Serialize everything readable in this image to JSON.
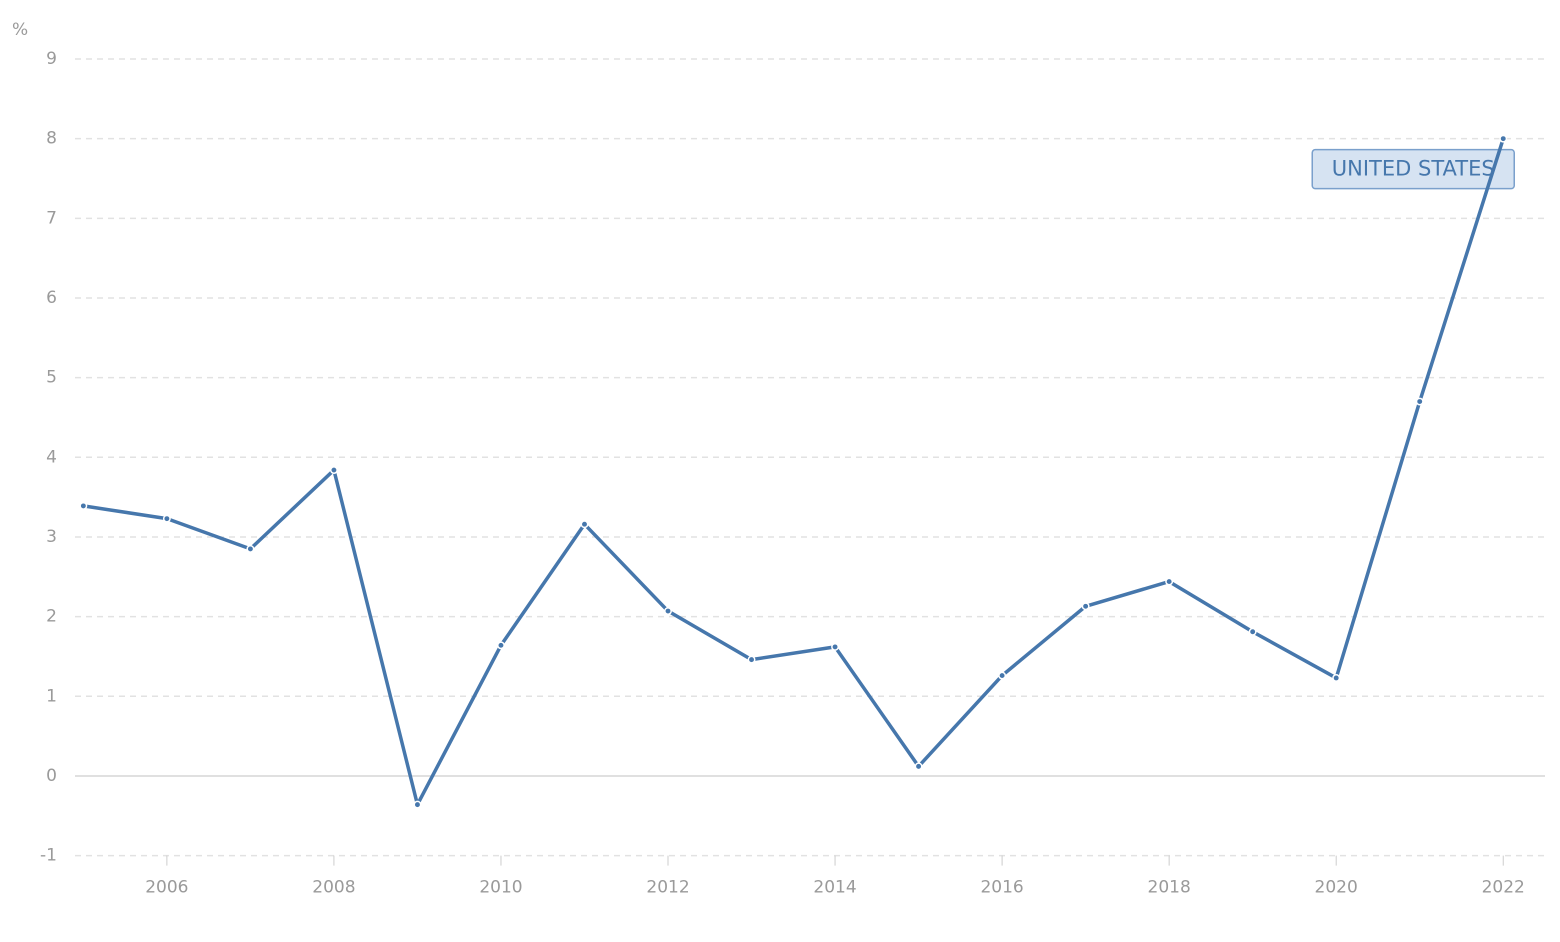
{
  "chart_data": {
    "type": "line",
    "y_unit": "%",
    "x": [
      2005,
      2006,
      2007,
      2008,
      2009,
      2010,
      2011,
      2012,
      2013,
      2014,
      2015,
      2016,
      2017,
      2018,
      2019,
      2020,
      2021,
      2022
    ],
    "series": [
      {
        "name": "UNITED STATES",
        "color": "#4677ac",
        "values": [
          3.39,
          3.23,
          2.85,
          3.84,
          -0.36,
          1.64,
          3.16,
          2.07,
          1.46,
          1.62,
          0.12,
          1.26,
          2.13,
          2.44,
          1.81,
          1.23,
          4.7,
          8.0
        ]
      }
    ],
    "xlim": [
      2004.9,
      2022.5
    ],
    "xticks": [
      2006,
      2008,
      2010,
      2012,
      2014,
      2016,
      2018,
      2020,
      2022
    ],
    "ylim": [
      -1,
      9
    ],
    "yticks": [
      -1,
      0,
      1,
      2,
      3,
      4,
      5,
      6,
      7,
      8,
      9
    ],
    "grid": true
  }
}
